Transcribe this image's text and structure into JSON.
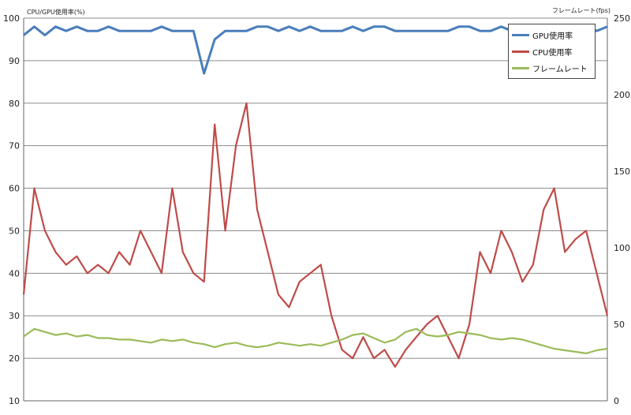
{
  "chart_data": {
    "type": "line",
    "title": "",
    "left_axis": {
      "label": "CPU/GPU使用率(%)",
      "ylim": [
        10,
        100
      ],
      "ticks": [
        10,
        20,
        30,
        40,
        50,
        60,
        70,
        80,
        90,
        100
      ]
    },
    "right_axis": {
      "label": "フレームレート(fps)",
      "ylim": [
        0,
        250
      ],
      "ticks": [
        0,
        50,
        100,
        150,
        200,
        250
      ]
    },
    "grid": "horizontal",
    "legend_position": "top-right",
    "x_count": 56,
    "series": [
      {
        "name": "GPU使用率",
        "axis": "left",
        "color": "#4a7ebb",
        "values": [
          96,
          98,
          96,
          98,
          97,
          98,
          97,
          97,
          98,
          97,
          97,
          97,
          97,
          98,
          97,
          97,
          97,
          87,
          95,
          97,
          97,
          97,
          98,
          98,
          97,
          98,
          97,
          98,
          97,
          97,
          97,
          98,
          97,
          98,
          98,
          97,
          97,
          97,
          97,
          97,
          97,
          98,
          98,
          97,
          97,
          98,
          97,
          95,
          97,
          98,
          98,
          94,
          97,
          98,
          97,
          98
        ]
      },
      {
        "name": "CPU使用率",
        "axis": "left",
        "color": "#be4b48",
        "values": [
          35,
          60,
          50,
          45,
          42,
          44,
          40,
          42,
          40,
          45,
          42,
          50,
          45,
          40,
          60,
          45,
          40,
          38,
          75,
          50,
          70,
          80,
          55,
          45,
          35,
          32,
          38,
          40,
          42,
          30,
          22,
          20,
          25,
          20,
          22,
          18,
          22,
          25,
          28,
          30,
          25,
          20,
          28,
          45,
          40,
          50,
          45,
          38,
          42,
          55,
          60,
          45,
          48,
          50,
          40,
          30
        ]
      },
      {
        "name": "フレームレート",
        "axis": "right",
        "color": "#9bbb59",
        "values": [
          42,
          47,
          45,
          43,
          44,
          42,
          43,
          41,
          41,
          40,
          40,
          39,
          38,
          40,
          39,
          40,
          38,
          37,
          35,
          37,
          38,
          36,
          35,
          36,
          38,
          37,
          36,
          37,
          36,
          38,
          40,
          43,
          44,
          41,
          38,
          40,
          45,
          47,
          43,
          42,
          43,
          45,
          44,
          43,
          41,
          40,
          41,
          40,
          38,
          36,
          34,
          33,
          32,
          31,
          33,
          34
        ]
      }
    ]
  }
}
